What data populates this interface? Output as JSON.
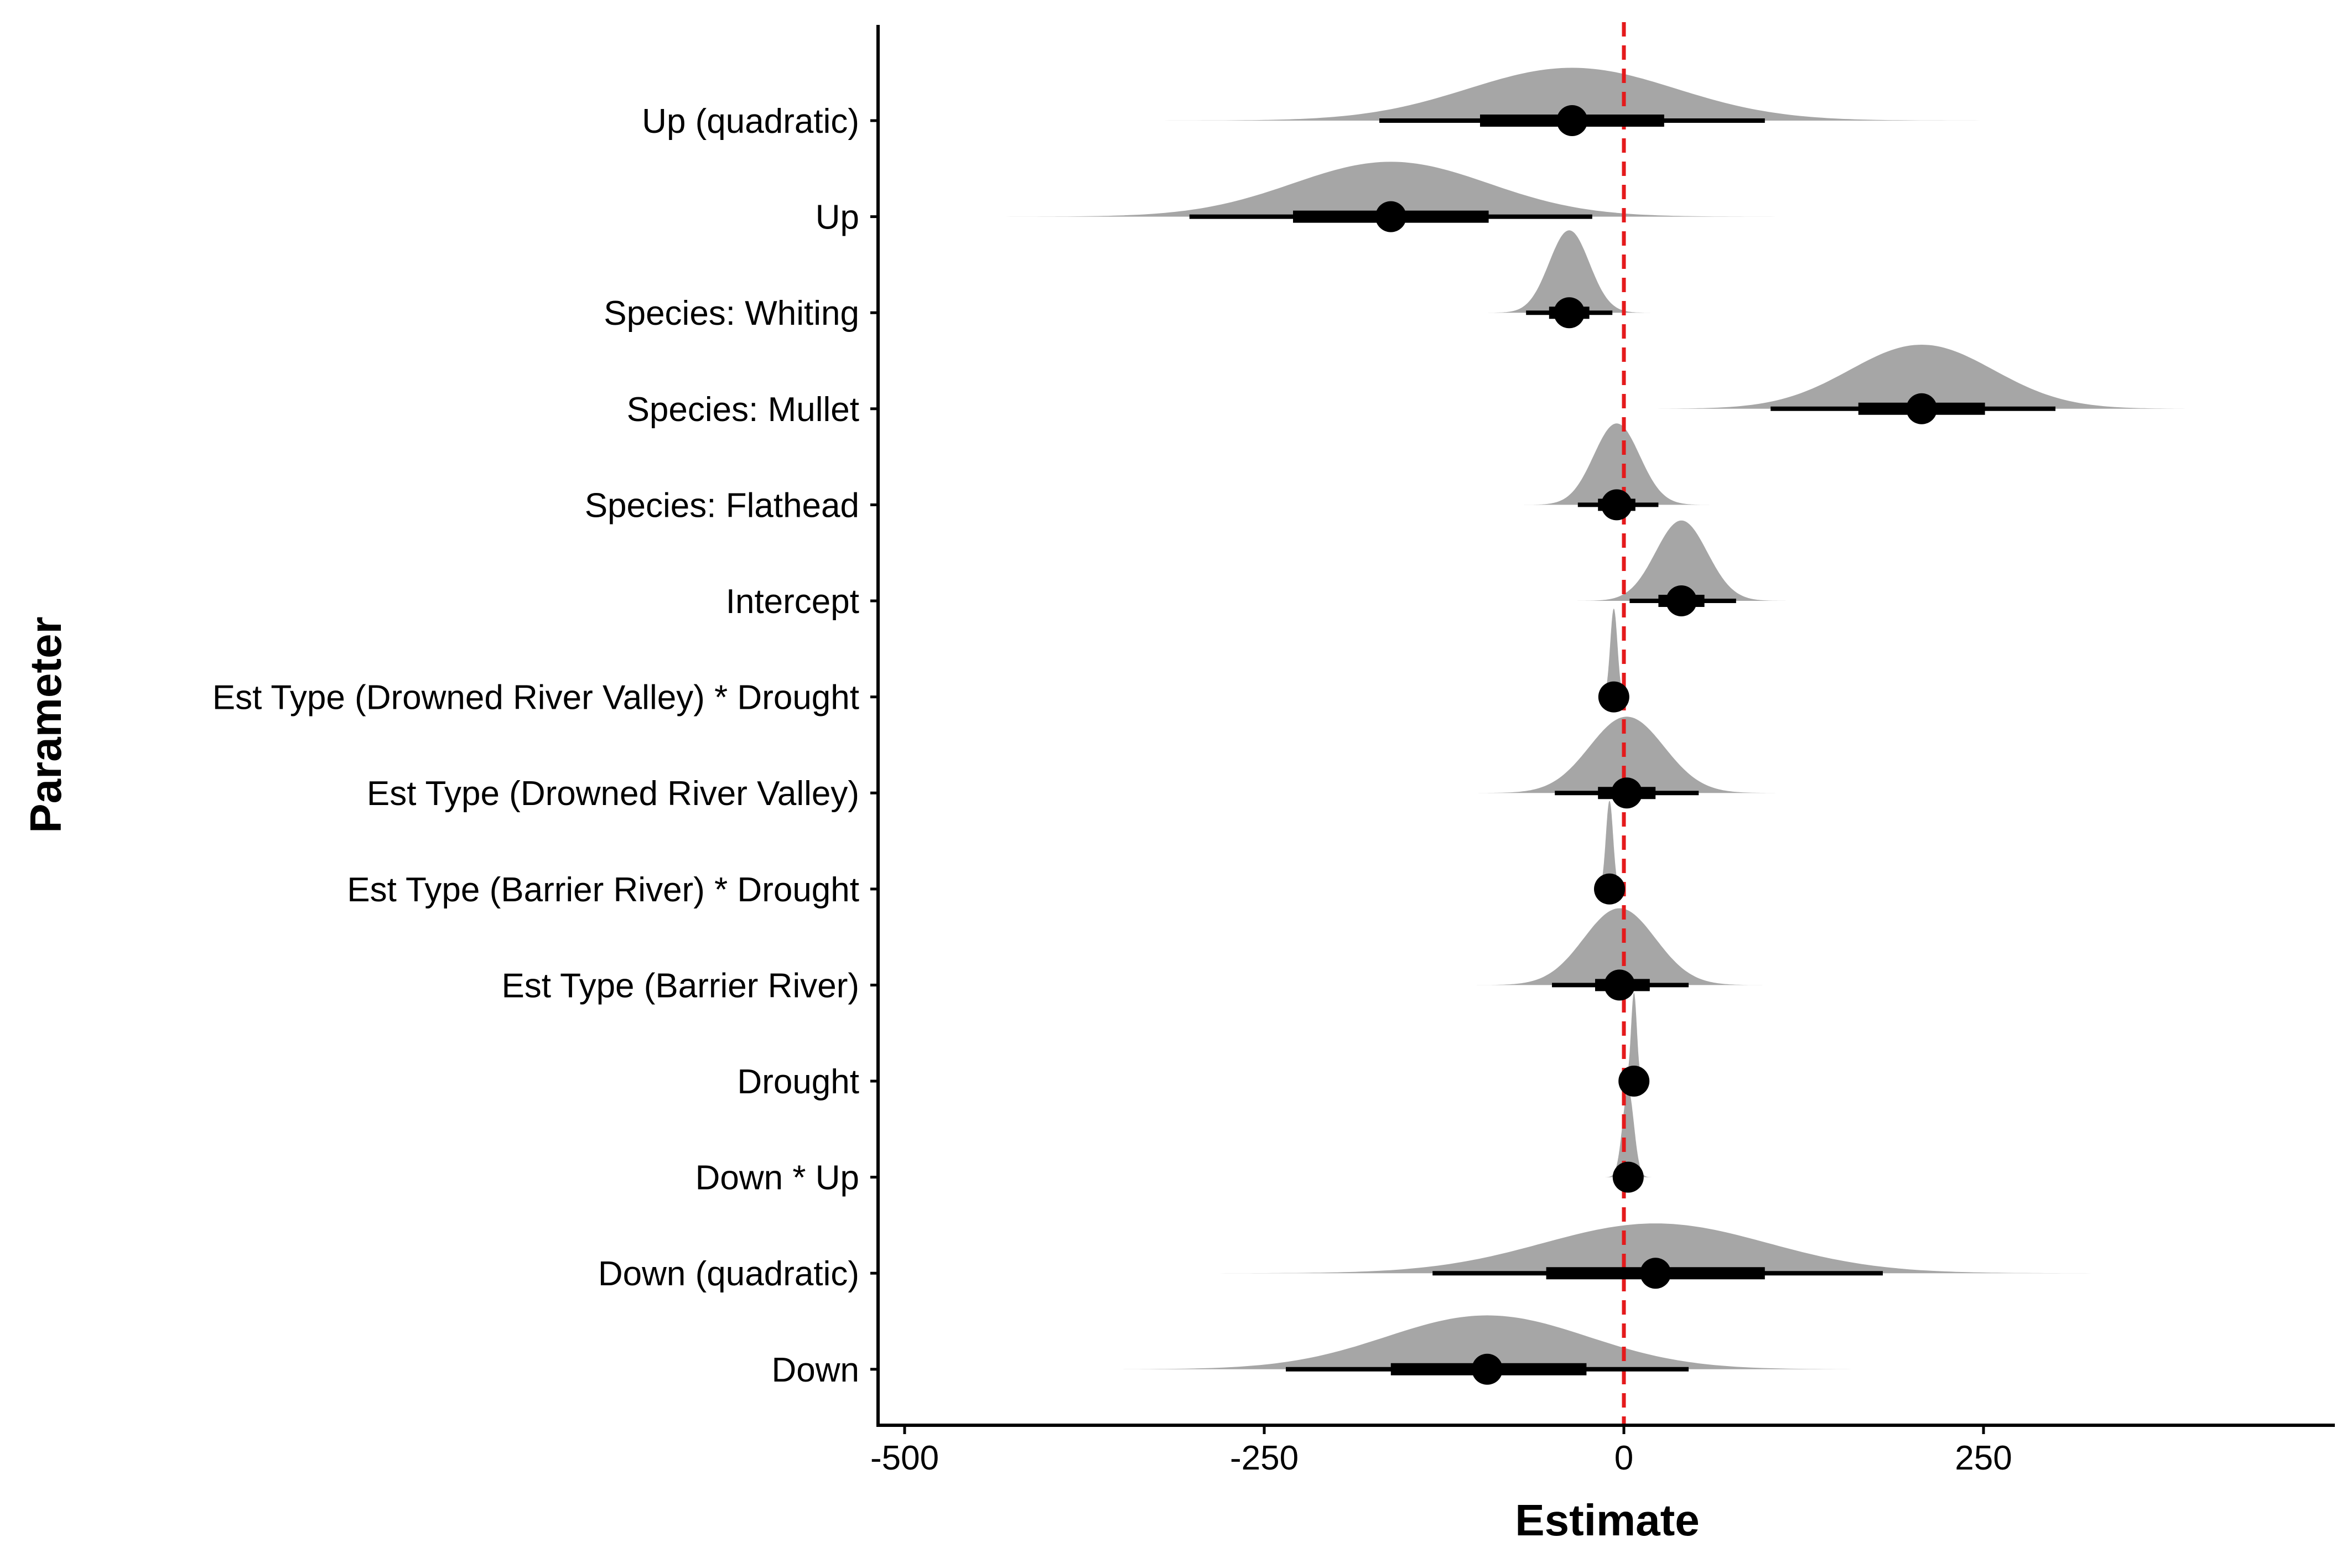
{
  "chart_data": {
    "type": "halfeye",
    "title": "",
    "xlabel": "Estimate",
    "ylabel": "Parameter",
    "xlim": [
      -510,
      500
    ],
    "xticks": [
      -500,
      -250,
      0,
      250
    ],
    "xtick_labels": [
      "-500",
      "-250",
      "0",
      "250"
    ],
    "reference_line": {
      "x": 0,
      "color": "#e41a1c",
      "style": "dashed"
    },
    "colors": {
      "density": "#a6a6a6",
      "interval": "#000000",
      "point": "#000000"
    },
    "parameters": [
      {
        "label": "Up (quadratic)",
        "median": -36,
        "sd": 72,
        "ci66": [
          -100,
          28
        ],
        "ci95": [
          -170,
          98
        ]
      },
      {
        "label": "Up",
        "median": -162,
        "sd": 68,
        "ci66": [
          -230,
          -94
        ],
        "ci95": [
          -302,
          -22
        ]
      },
      {
        "label": "Species: Whiting",
        "median": -38,
        "sd": 14,
        "ci66": [
          -52,
          -24
        ],
        "ci95": [
          -68,
          -8
        ]
      },
      {
        "label": "Species: Mullet",
        "median": 207,
        "sd": 50,
        "ci66": [
          163,
          251
        ],
        "ci95": [
          102,
          300
        ]
      },
      {
        "label": "Species: Flathead",
        "median": -5,
        "sd": 16,
        "ci66": [
          -18,
          8
        ],
        "ci95": [
          -32,
          24
        ]
      },
      {
        "label": "Intercept",
        "median": 40,
        "sd": 18,
        "ci66": [
          24,
          56
        ],
        "ci95": [
          4,
          78
        ]
      },
      {
        "label": "Est Type (Drowned River Valley) * Drought",
        "median": -7,
        "sd": 2.5,
        "ci66": [
          -9,
          -5
        ],
        "ci95": [
          -11,
          -3
        ]
      },
      {
        "label": "Est Type (Drowned River Valley)",
        "median": 2,
        "sd": 26,
        "ci66": [
          -18,
          22
        ],
        "ci95": [
          -48,
          52
        ]
      },
      {
        "label": "Est Type (Barrier River) * Drought",
        "median": -10,
        "sd": 2.5,
        "ci66": [
          -12,
          -8
        ],
        "ci95": [
          -14,
          -6
        ]
      },
      {
        "label": "Est Type (Barrier River)",
        "median": -3,
        "sd": 25,
        "ci66": [
          -20,
          18
        ],
        "ci95": [
          -50,
          45
        ]
      },
      {
        "label": "Drought",
        "median": 7,
        "sd": 2,
        "ci66": [
          6,
          8
        ],
        "ci95": [
          5,
          9
        ]
      },
      {
        "label": "Down * Up",
        "median": 3,
        "sd": 4,
        "ci66": [
          1,
          5
        ],
        "ci95": [
          -1,
          7
        ]
      },
      {
        "label": "Down (quadratic)",
        "median": 22,
        "sd": 78,
        "ci66": [
          -54,
          98
        ],
        "ci95": [
          -133,
          180
        ]
      },
      {
        "label": "Down",
        "median": -95,
        "sd": 70,
        "ci66": [
          -162,
          -26
        ],
        "ci95": [
          -235,
          45
        ]
      }
    ]
  }
}
